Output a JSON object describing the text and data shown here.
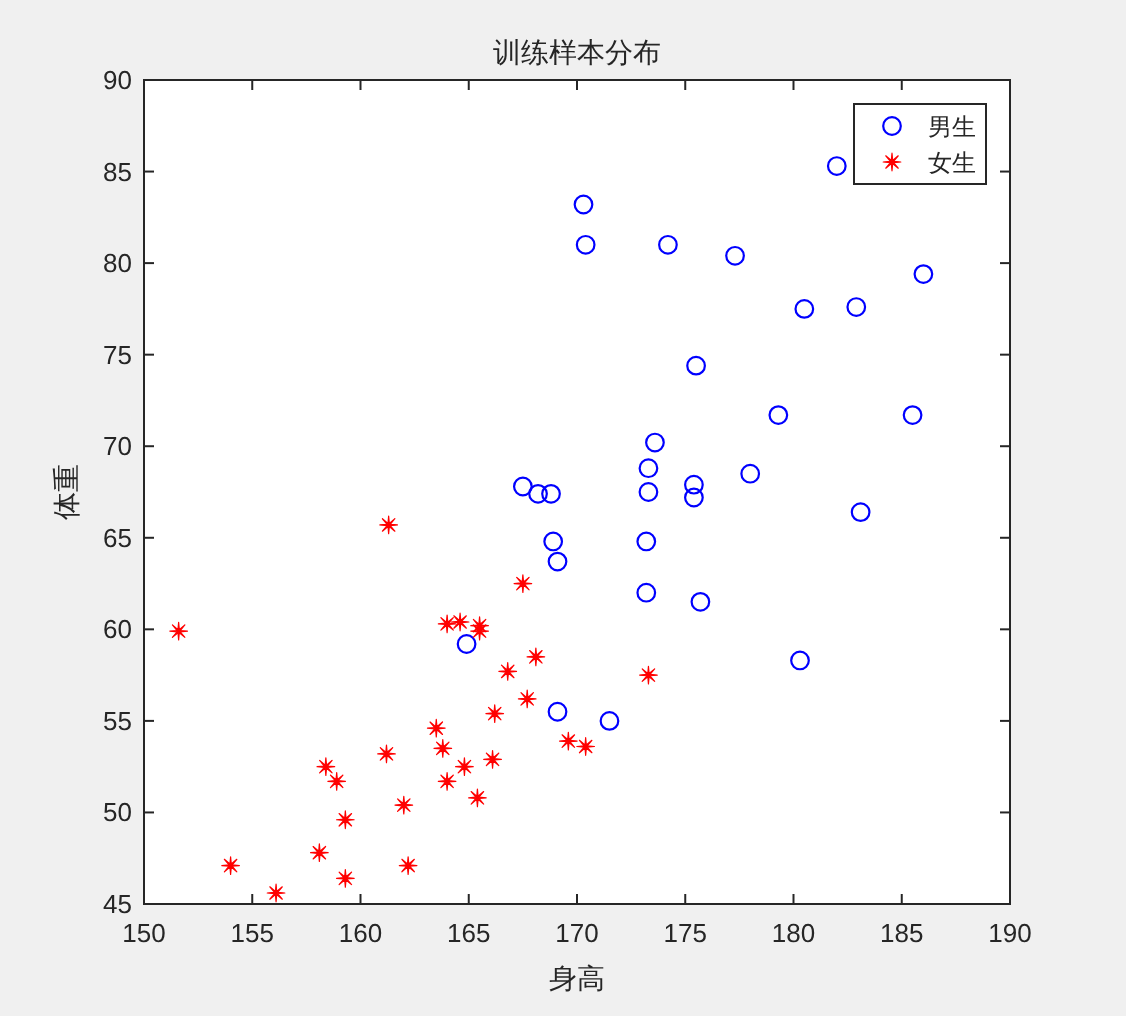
{
  "chart_data": {
    "type": "scatter",
    "title": "训练样本分布",
    "xlabel": "身高",
    "ylabel": "体重",
    "xlim": [
      150,
      190
    ],
    "ylim": [
      45,
      90
    ],
    "xticks": [
      150,
      155,
      160,
      165,
      170,
      175,
      180,
      185,
      190
    ],
    "yticks": [
      45,
      50,
      55,
      60,
      65,
      70,
      75,
      80,
      85,
      90
    ],
    "legend": "top right",
    "series": [
      {
        "name": "男生",
        "color": "#0000ff",
        "marker": "circle",
        "x": [
          170.3,
          170.4,
          174.2,
          177.3,
          182.0,
          186.0,
          180.5,
          182.9,
          175.5,
          179.3,
          185.5,
          173.6,
          173.3,
          178.0,
          173.3,
          175.4,
          175.4,
          183.1,
          167.5,
          168.2,
          168.8,
          168.9,
          169.1,
          164.9,
          169.1,
          173.2,
          173.2,
          175.7,
          180.3,
          171.5
        ],
        "values": [
          83.2,
          81.0,
          81.0,
          80.4,
          85.3,
          79.4,
          77.5,
          77.6,
          74.4,
          71.7,
          71.7,
          70.2,
          68.8,
          68.5,
          67.5,
          67.9,
          67.2,
          66.4,
          67.8,
          67.4,
          67.4,
          64.8,
          63.7,
          59.2,
          55.5,
          64.8,
          62.0,
          61.5,
          58.3,
          55.0
        ]
      },
      {
        "name": "女生",
        "color": "#ff0000",
        "marker": "star",
        "x": [
          151.6,
          161.3,
          167.5,
          164.0,
          164.6,
          165.5,
          165.5,
          168.1,
          166.8,
          167.7,
          166.2,
          169.6,
          170.4,
          173.3,
          163.5,
          163.8,
          158.4,
          158.9,
          161.2,
          164.8,
          166.1,
          164.0,
          165.4,
          162.0,
          159.3,
          158.1,
          154.0,
          159.3,
          162.2,
          156.1
        ],
        "values": [
          59.9,
          65.7,
          62.5,
          60.3,
          60.4,
          60.2,
          59.9,
          58.5,
          57.7,
          56.2,
          55.4,
          53.9,
          53.6,
          57.5,
          54.6,
          53.5,
          52.5,
          51.7,
          53.2,
          52.5,
          52.9,
          51.7,
          50.8,
          50.4,
          49.6,
          47.8,
          47.1,
          46.4,
          47.1,
          45.6
        ]
      }
    ]
  }
}
